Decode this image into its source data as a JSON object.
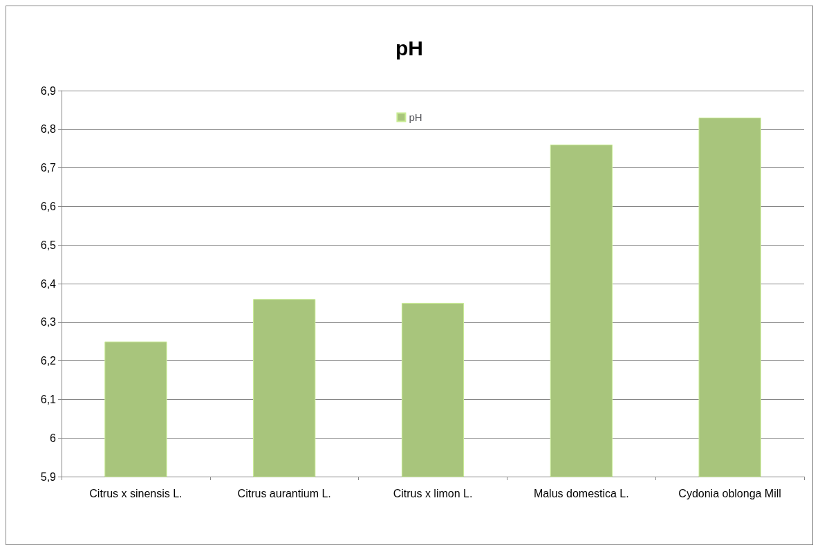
{
  "chart_data": {
    "type": "bar",
    "title": "pH",
    "categories": [
      "Citrus x sinensis L.",
      "Citrus aurantium L.",
      "Citrus x limon L.",
      "Malus domestica L.",
      "Cydonia oblonga Mill"
    ],
    "series": [
      {
        "name": "pH",
        "color": "#a8c57c",
        "values": [
          6.25,
          6.36,
          6.35,
          6.76,
          6.83
        ]
      }
    ],
    "ylim": [
      5.9,
      6.9
    ],
    "yticks": [
      {
        "value": 5.9,
        "label": "5,9"
      },
      {
        "value": 6.0,
        "label": "6"
      },
      {
        "value": 6.1,
        "label": "6,1"
      },
      {
        "value": 6.2,
        "label": "6,2"
      },
      {
        "value": 6.3,
        "label": "6,3"
      },
      {
        "value": 6.4,
        "label": "6,4"
      },
      {
        "value": 6.5,
        "label": "6,5"
      },
      {
        "value": 6.6,
        "label": "6,6"
      },
      {
        "value": 6.7,
        "label": "6,7"
      },
      {
        "value": 6.8,
        "label": "6,8"
      },
      {
        "value": 6.9,
        "label": "6,9"
      }
    ],
    "grid": "y",
    "legend": "top"
  }
}
